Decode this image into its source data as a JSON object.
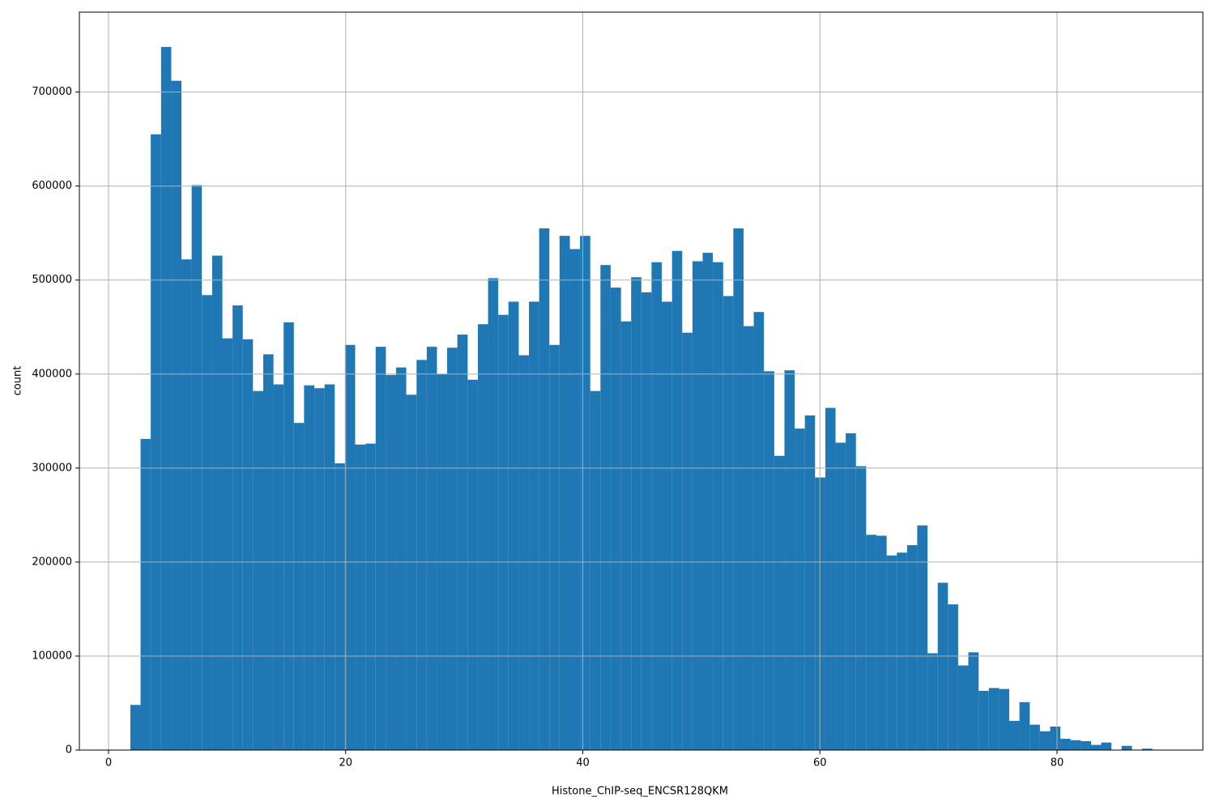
{
  "chart_data": {
    "type": "histogram",
    "xlabel": "Histone_ChIP-seq_ENCSR128QKM",
    "ylabel": "count",
    "color": "#1f77b4",
    "grid": true,
    "bins": [
      1.84,
      2.7,
      3.56,
      4.43,
      5.29,
      6.15,
      7.01,
      7.87,
      8.74,
      9.6,
      10.46,
      11.32,
      12.18,
      13.05,
      13.91,
      14.77,
      15.63,
      16.49,
      17.36,
      18.22,
      19.08,
      19.94,
      20.8,
      21.67,
      22.53,
      23.39,
      24.25,
      25.11,
      25.98,
      26.84,
      27.7,
      28.56,
      29.42,
      30.29,
      31.15,
      32.01,
      32.87,
      33.73,
      34.6,
      35.46,
      36.32,
      37.18,
      38.04,
      38.91,
      39.77,
      40.63,
      41.49,
      42.35,
      43.22,
      44.08,
      44.94,
      45.8,
      46.66,
      47.53,
      48.39,
      49.25,
      50.11,
      50.97,
      51.84,
      52.7,
      53.56,
      54.42,
      55.28,
      56.15,
      57.01,
      57.87,
      58.73,
      59.59,
      60.46,
      61.32,
      62.18,
      63.04,
      63.9,
      64.77,
      65.63,
      66.49,
      67.35,
      68.21,
      69.08,
      69.94,
      70.8,
      71.66,
      72.52,
      73.39,
      74.25,
      75.11,
      75.97,
      76.83,
      77.7,
      78.56,
      79.42,
      80.28,
      81.14,
      82.01,
      82.87,
      83.73,
      84.59,
      85.45,
      86.32,
      87.18,
      88.04
    ],
    "values": [
      48000,
      331000,
      655000,
      748000,
      712000,
      522000,
      601000,
      484000,
      526000,
      438000,
      473000,
      437000,
      382000,
      421000,
      389000,
      455000,
      348000,
      388000,
      385000,
      389000,
      305000,
      431000,
      325000,
      326000,
      429000,
      399000,
      407000,
      378000,
      415000,
      429000,
      400000,
      428000,
      442000,
      394000,
      453000,
      502000,
      463000,
      477000,
      420000,
      477000,
      555000,
      431000,
      547000,
      533000,
      547000,
      382000,
      516000,
      492000,
      456000,
      503000,
      487000,
      519000,
      477000,
      531000,
      444000,
      520000,
      529000,
      519000,
      483000,
      555000,
      451000,
      466000,
      403000,
      313000,
      404000,
      342000,
      356000,
      290000,
      364000,
      327000,
      337000,
      302000,
      229000,
      228000,
      207000,
      210000,
      218000,
      239000,
      103000,
      178000,
      155000,
      90000,
      104000,
      63000,
      66000,
      65000,
      31000,
      51000,
      27000,
      20000,
      25000,
      12000,
      10500,
      9500,
      5500,
      8000,
      0,
      4500,
      0,
      1500
    ],
    "xlim": [
      -2.46,
      92.3
    ],
    "ylim": [
      0,
      785000
    ],
    "xticks": [
      0,
      20,
      40,
      60,
      80
    ],
    "yticks": [
      0,
      100000,
      200000,
      300000,
      400000,
      500000,
      600000,
      700000
    ]
  }
}
